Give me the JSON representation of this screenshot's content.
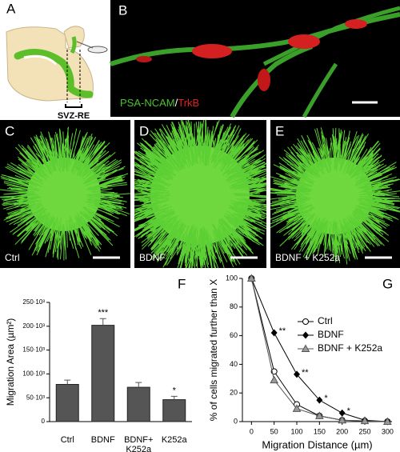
{
  "panels": {
    "a": {
      "label": "A",
      "region": "SVZ-RE"
    },
    "b": {
      "label": "B",
      "stain_1": "PSA-NCAM",
      "separator": "/",
      "stain_2": "TrkB"
    },
    "c": {
      "label": "C",
      "condition": "Ctrl"
    },
    "d": {
      "label": "D",
      "condition": "BDNF"
    },
    "e": {
      "label": "E",
      "condition": "BDNF + K252a"
    }
  },
  "chart_data": [
    {
      "type": "bar",
      "panel_label": "F",
      "y_label": "Migration Area (µm²)",
      "categories": [
        "Ctrl",
        "BDNF",
        "BDNF+\nK252a",
        "K252a"
      ],
      "values": [
        78000,
        202000,
        72000,
        46000
      ],
      "errors": [
        9000,
        14000,
        10000,
        7000
      ],
      "significance": [
        null,
        "***",
        null,
        "*"
      ],
      "color": "#555555",
      "ylim": [
        0,
        250000
      ],
      "yticks": [
        0,
        {
          "value": 50000,
          "label": "50·10³"
        },
        {
          "value": 100000,
          "label": "100·10³"
        },
        {
          "value": 150000,
          "label": "150·10³"
        },
        {
          "value": 200000,
          "label": "200·10³"
        },
        {
          "value": 250000,
          "label": "250·10³"
        }
      ]
    },
    {
      "type": "line",
      "panel_label": "G",
      "x_label": "Migration Distance (µm)",
      "y_label": "% of cells migrated further than X",
      "x": [
        0,
        50,
        100,
        150,
        200,
        250,
        300
      ],
      "series": [
        {
          "name": "Ctrl",
          "color": "#000000",
          "marker": "open-circle",
          "values": [
            100,
            35,
            12,
            4,
            1,
            0.5,
            0
          ],
          "significance": [
            null,
            null,
            null,
            null,
            null,
            null,
            null
          ]
        },
        {
          "name": "BDNF",
          "color": "#000000",
          "marker": "diamond",
          "values": [
            100,
            62,
            33,
            15,
            6,
            1,
            0
          ],
          "significance": [
            null,
            "**",
            "**",
            "*",
            "*",
            null,
            null
          ]
        },
        {
          "name": "BDNF + K252a",
          "color": "#9a9a9a",
          "marker": "triangle",
          "values": [
            100,
            29,
            9,
            4,
            1,
            0.5,
            0
          ],
          "significance": [
            null,
            null,
            null,
            null,
            null,
            null,
            null
          ]
        }
      ],
      "xlim": [
        -20,
        310
      ],
      "xticks": [
        0,
        50,
        100,
        150,
        200,
        250,
        300
      ],
      "ylim": [
        0,
        100
      ],
      "yticks": [
        0,
        20,
        40,
        60,
        80,
        100
      ],
      "legend": "upper right"
    }
  ]
}
